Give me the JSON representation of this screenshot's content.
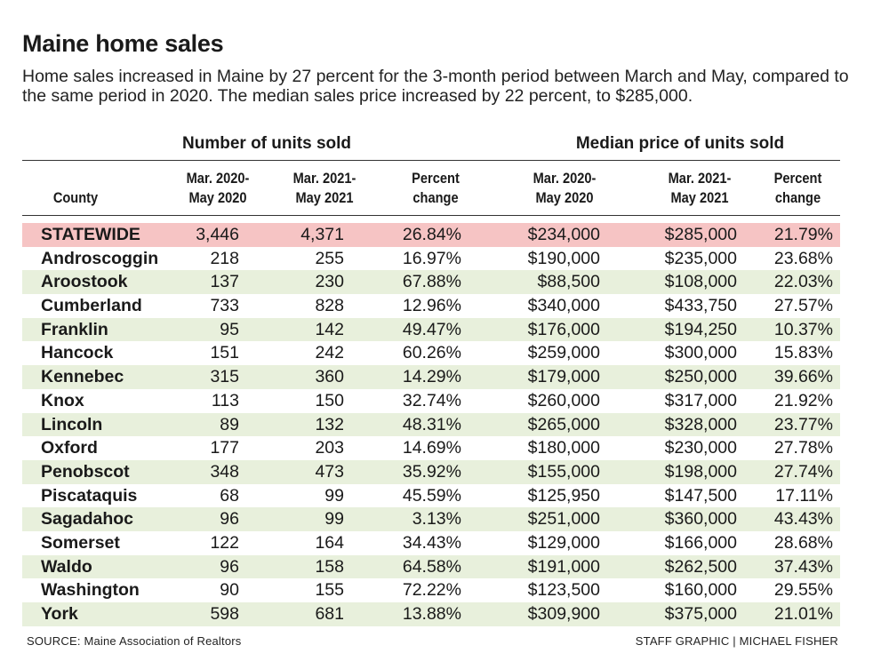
{
  "title": "Maine home sales",
  "subtitle": "Home sales increased in Maine by 27 percent for the 3-month period between March and May, compared to the same period in 2020. The median sales price increased by 22 percent, to $285,000.",
  "group_headers": {
    "units": "Number of units sold",
    "price": "Median price of units sold"
  },
  "columns": {
    "county": "County",
    "units_2020": [
      "Mar. 2020-",
      "May 2020"
    ],
    "units_2021": [
      "Mar. 2021-",
      "May 2021"
    ],
    "units_change": [
      "Percent",
      "change"
    ],
    "price_2020": [
      "Mar. 2020-",
      "May 2020"
    ],
    "price_2021": [
      "Mar. 2021-",
      "May 2021"
    ],
    "price_change": [
      "Percent",
      "change"
    ]
  },
  "rows": [
    [
      "STATEWIDE",
      "3,446",
      "4,371",
      "26.84%",
      "$234,000",
      "$285,000",
      "21.79%"
    ],
    [
      "Androscoggin",
      "218",
      "255",
      "16.97%",
      "$190,000",
      "$235,000",
      "23.68%"
    ],
    [
      "Aroostook",
      "137",
      "230",
      "67.88%",
      "$88,500",
      "$108,000",
      "22.03%"
    ],
    [
      "Cumberland",
      "733",
      "828",
      "12.96%",
      "$340,000",
      "$433,750",
      "27.57%"
    ],
    [
      "Franklin",
      "95",
      "142",
      "49.47%",
      "$176,000",
      "$194,250",
      "10.37%"
    ],
    [
      "Hancock",
      "151",
      "242",
      "60.26%",
      "$259,000",
      "$300,000",
      "15.83%"
    ],
    [
      "Kennebec",
      "315",
      "360",
      "14.29%",
      "$179,000",
      "$250,000",
      "39.66%"
    ],
    [
      "Knox",
      "113",
      "150",
      "32.74%",
      "$260,000",
      "$317,000",
      "21.92%"
    ],
    [
      "Lincoln",
      "89",
      "132",
      "48.31%",
      "$265,000",
      "$328,000",
      "23.77%"
    ],
    [
      "Oxford",
      "177",
      "203",
      "14.69%",
      "$180,000",
      "$230,000",
      "27.78%"
    ],
    [
      "Penobscot",
      "348",
      "473",
      "35.92%",
      "$155,000",
      "$198,000",
      "27.74%"
    ],
    [
      "Piscataquis",
      "68",
      "99",
      "45.59%",
      "$125,950",
      "$147,500",
      "17.11%"
    ],
    [
      "Sagadahoc",
      "96",
      "99",
      "3.13%",
      "$251,000",
      "$360,000",
      "43.43%"
    ],
    [
      "Somerset",
      "122",
      "164",
      "34.43%",
      "$129,000",
      "$166,000",
      "28.68%"
    ],
    [
      "Waldo",
      "96",
      "158",
      "64.58%",
      "$191,000",
      "$262,500",
      "37.43%"
    ],
    [
      "Washington",
      "90",
      "155",
      "72.22%",
      "$123,500",
      "$160,000",
      "29.55%"
    ],
    [
      "York",
      "598",
      "681",
      "13.88%",
      "$309,900",
      "$375,000",
      "21.01%"
    ]
  ],
  "colors": {
    "statewide_row": "#f6c4c4",
    "shaded_row": "#e8f0dc"
  },
  "footer": {
    "source": "SOURCE: Maine Association of Realtors",
    "credit": "STAFF GRAPHIC | MICHAEL FISHER"
  }
}
